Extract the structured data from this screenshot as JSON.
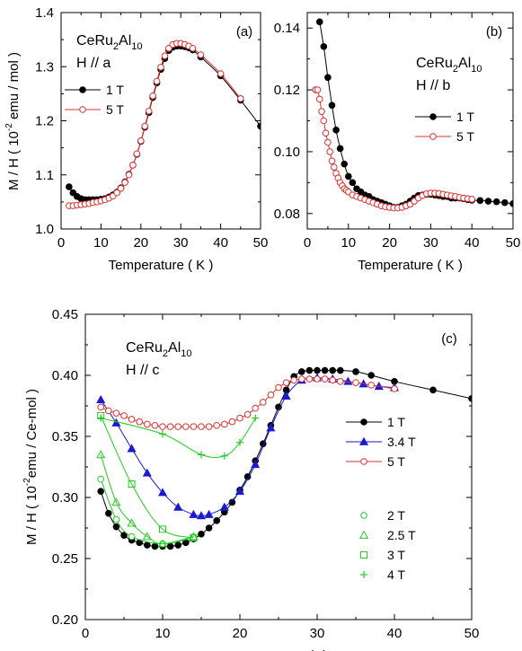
{
  "chart_data": [
    {
      "type": "line",
      "panel_label": "(a)",
      "compound": {
        "main": "CeRu",
        "s1": "2",
        "mid": "Al",
        "s2": "10"
      },
      "field_direction": "H // a",
      "xlabel": "Temperature ( K )",
      "ylabel": "M / H ( 10",
      "ylabel_sup": "-2",
      "ylabel_end": " emu / mol )",
      "xlim": [
        0,
        50
      ],
      "ylim": [
        1.0,
        1.4
      ],
      "xticks": [
        0,
        10,
        20,
        30,
        40,
        50
      ],
      "yticks": [
        1.0,
        1.1,
        1.2,
        1.3,
        1.4
      ],
      "ytick_decimals": 1,
      "legend_position": "left-middle",
      "series": [
        {
          "name": "1 T",
          "color": "#000000",
          "marker": "filled-circle",
          "x": [
            2,
            3,
            4,
            5,
            6,
            7,
            8,
            9,
            10,
            11,
            12,
            13,
            14,
            15,
            16,
            17,
            18,
            19,
            20,
            21,
            22,
            23,
            24,
            25,
            26,
            27,
            28,
            29,
            30,
            31,
            32,
            33,
            35,
            40,
            45,
            50
          ],
          "y": [
            1.078,
            1.067,
            1.06,
            1.056,
            1.054,
            1.054,
            1.054,
            1.054,
            1.055,
            1.056,
            1.059,
            1.063,
            1.068,
            1.076,
            1.087,
            1.101,
            1.118,
            1.138,
            1.162,
            1.188,
            1.215,
            1.243,
            1.27,
            1.295,
            1.315,
            1.33,
            1.336,
            1.338,
            1.338,
            1.337,
            1.335,
            1.331,
            1.318,
            1.283,
            1.238,
            1.19
          ]
        },
        {
          "name": "5 T",
          "color": "#e03030",
          "marker": "open-circle",
          "x": [
            2,
            3,
            4,
            5,
            6,
            7,
            8,
            9,
            10,
            11,
            12,
            13,
            14,
            15,
            16,
            17,
            18,
            19,
            20,
            21,
            22,
            23,
            24,
            25,
            26,
            27,
            28,
            29,
            30,
            31,
            32,
            33,
            35,
            40,
            45
          ],
          "y": [
            1.043,
            1.043,
            1.044,
            1.045,
            1.046,
            1.047,
            1.049,
            1.05,
            1.052,
            1.054,
            1.057,
            1.061,
            1.067,
            1.075,
            1.086,
            1.1,
            1.118,
            1.139,
            1.163,
            1.19,
            1.218,
            1.246,
            1.273,
            1.299,
            1.32,
            1.334,
            1.341,
            1.343,
            1.343,
            1.341,
            1.338,
            1.334,
            1.322,
            1.287,
            1.241
          ]
        }
      ]
    },
    {
      "type": "line",
      "panel_label": "(b)",
      "compound": {
        "main": "CeRu",
        "s1": "2",
        "mid": "Al",
        "s2": "10"
      },
      "field_direction": "H // b",
      "xlabel": "Temperature ( K )",
      "xlim": [
        0,
        50
      ],
      "ylim": [
        0.075,
        0.145
      ],
      "xticks": [
        0,
        10,
        20,
        30,
        40,
        50
      ],
      "yticks": [
        0.08,
        0.1,
        0.12,
        0.14
      ],
      "ytick_decimals": 2,
      "legend_position": "right-middle",
      "series": [
        {
          "name": "1 T",
          "color": "#000000",
          "marker": "filled-circle",
          "x": [
            3,
            4,
            5,
            6,
            7,
            8,
            9,
            10,
            11,
            12,
            13,
            14,
            15,
            16,
            17,
            18,
            19,
            20,
            21,
            22,
            23,
            24,
            25,
            26,
            27,
            28,
            29,
            30,
            31,
            32,
            33,
            34,
            35,
            36,
            37,
            38,
            39,
            40,
            42,
            44,
            46,
            48,
            50
          ],
          "y": [
            0.142,
            0.134,
            0.124,
            0.115,
            0.107,
            0.101,
            0.096,
            0.092,
            0.09,
            0.088,
            0.087,
            0.086,
            0.0855,
            0.0845,
            0.084,
            0.0835,
            0.083,
            0.0825,
            0.082,
            0.082,
            0.0825,
            0.083,
            0.084,
            0.085,
            0.0858,
            0.086,
            0.0862,
            0.0862,
            0.086,
            0.0858,
            0.0855,
            0.0855,
            0.085,
            0.085,
            0.085,
            0.0848,
            0.0845,
            0.0843,
            0.0842,
            0.084,
            0.0838,
            0.0835,
            0.0832
          ]
        },
        {
          "name": "5 T",
          "color": "#e03030",
          "marker": "open-circle",
          "x": [
            2,
            2.5,
            3,
            3.5,
            4,
            4.5,
            5,
            5.5,
            6,
            6.5,
            7,
            7.5,
            8,
            8.5,
            9,
            9.5,
            10,
            11,
            12,
            13,
            14,
            15,
            16,
            17,
            18,
            19,
            20,
            21,
            22,
            23,
            24,
            25,
            26,
            27,
            28,
            29,
            30,
            31,
            32,
            33,
            34,
            35,
            36,
            37,
            38,
            39,
            40
          ],
          "y": [
            0.12,
            0.12,
            0.117,
            0.113,
            0.11,
            0.106,
            0.103,
            0.1,
            0.097,
            0.095,
            0.093,
            0.0915,
            0.09,
            0.089,
            0.088,
            0.0875,
            0.087,
            0.086,
            0.0855,
            0.085,
            0.0845,
            0.084,
            0.0835,
            0.083,
            0.0825,
            0.0822,
            0.082,
            0.0818,
            0.0818,
            0.082,
            0.0825,
            0.083,
            0.084,
            0.085,
            0.0858,
            0.0864,
            0.0866,
            0.0866,
            0.0865,
            0.0862,
            0.086,
            0.0857,
            0.0855,
            0.0852,
            0.085,
            0.0848,
            0.0846
          ]
        }
      ]
    },
    {
      "type": "line",
      "panel_label": "(c)",
      "compound": {
        "main": "CeRu",
        "s1": "2",
        "mid": "Al",
        "s2": "10"
      },
      "field_direction": "H // c",
      "xlabel": "Temperature (K)",
      "ylabel": "M / H ( 10",
      "ylabel_sup": "-2",
      "ylabel_end": "emu / Ce-mol )",
      "xlim": [
        0,
        50
      ],
      "ylim": [
        0.2,
        0.45
      ],
      "xticks": [
        0,
        10,
        20,
        30,
        40,
        50
      ],
      "yticks": [
        0.2,
        0.25,
        0.3,
        0.35,
        0.4,
        0.45
      ],
      "ytick_decimals": 2,
      "legend_position": "right-middle",
      "series": [
        {
          "name": "1 T",
          "color": "#000000",
          "marker": "filled-circle",
          "x": [
            2,
            3,
            4,
            5,
            6,
            7,
            8,
            9,
            10,
            11,
            12,
            13,
            14,
            15,
            16,
            17,
            18,
            19,
            20,
            21,
            22,
            23,
            24,
            25,
            26,
            27,
            28,
            29,
            30,
            31,
            32,
            33,
            35,
            37,
            40,
            45,
            50
          ],
          "y": [
            0.305,
            0.287,
            0.276,
            0.269,
            0.265,
            0.263,
            0.261,
            0.26,
            0.26,
            0.26,
            0.261,
            0.263,
            0.266,
            0.27,
            0.275,
            0.281,
            0.288,
            0.296,
            0.306,
            0.317,
            0.33,
            0.344,
            0.359,
            0.374,
            0.388,
            0.399,
            0.403,
            0.404,
            0.404,
            0.404,
            0.404,
            0.404,
            0.403,
            0.4,
            0.395,
            0.388,
            0.381
          ]
        },
        {
          "name": "3.4 T",
          "color": "#1a1ad0",
          "marker": "filled-triangle",
          "x": [
            2,
            4,
            6,
            8,
            10,
            12,
            14,
            15,
            16,
            18,
            20,
            22,
            24,
            26,
            28,
            30,
            32,
            34,
            36,
            38,
            40
          ],
          "y": [
            0.38,
            0.361,
            0.34,
            0.32,
            0.304,
            0.292,
            0.286,
            0.285,
            0.286,
            0.292,
            0.305,
            0.327,
            0.357,
            0.383,
            0.396,
            0.398,
            0.397,
            0.395,
            0.393,
            0.391,
            0.39
          ]
        },
        {
          "name": "5 T",
          "color": "#e03030",
          "marker": "open-circle",
          "x": [
            2,
            3,
            4,
            5,
            6,
            7,
            8,
            9,
            10,
            11,
            12,
            13,
            14,
            15,
            16,
            17,
            18,
            19,
            20,
            21,
            22,
            23,
            24,
            25,
            26,
            27,
            28,
            29,
            30,
            31,
            32,
            33,
            35,
            37,
            40
          ],
          "y": [
            0.374,
            0.371,
            0.369,
            0.367,
            0.364,
            0.362,
            0.36,
            0.359,
            0.358,
            0.358,
            0.358,
            0.358,
            0.358,
            0.358,
            0.358,
            0.359,
            0.36,
            0.362,
            0.365,
            0.368,
            0.373,
            0.378,
            0.384,
            0.39,
            0.394,
            0.396,
            0.397,
            0.397,
            0.397,
            0.397,
            0.396,
            0.395,
            0.394,
            0.392,
            0.389
          ]
        },
        {
          "name": "2 T",
          "color": "#22cc22",
          "marker": "open-circle",
          "x": [
            2,
            4,
            6,
            10,
            14
          ],
          "y": [
            0.315,
            0.282,
            0.268,
            0.262,
            0.267
          ]
        },
        {
          "name": "2.5 T",
          "color": "#22cc22",
          "marker": "open-triangle",
          "x": [
            2,
            4,
            6,
            8,
            10,
            14
          ],
          "y": [
            0.335,
            0.296,
            0.279,
            0.268,
            0.262,
            0.268
          ]
        },
        {
          "name": "3 T",
          "color": "#22cc22",
          "marker": "open-square",
          "x": [
            2,
            6,
            10,
            14
          ],
          "y": [
            0.367,
            0.311,
            0.274,
            0.267
          ]
        },
        {
          "name": "4 T",
          "color": "#22cc22",
          "marker": "plus",
          "x": [
            2,
            10,
            15,
            18,
            20,
            22
          ],
          "y": [
            0.365,
            0.352,
            0.335,
            0.334,
            0.345,
            0.365
          ]
        }
      ]
    }
  ]
}
